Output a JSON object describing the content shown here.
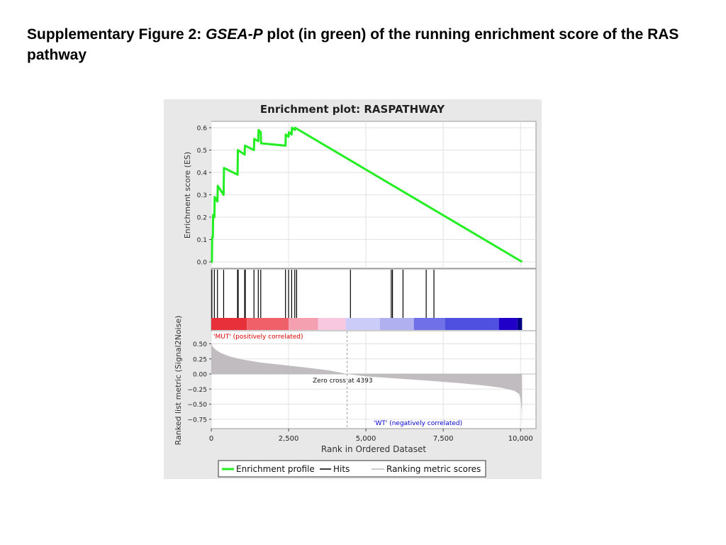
{
  "caption": {
    "prefix": "Supplementary Figure 2: ",
    "italic": "GSEA-P",
    "suffix": " plot (in green) of the running enrichment score of the RAS pathway"
  },
  "colors": {
    "panel_bg": "#e8e8e8",
    "es_line": "#22ee22",
    "hits": "#000000",
    "metric_fill": "#c0bcc0",
    "mut_label": "#dd0000",
    "wt_label": "#0000cc"
  },
  "chart_data": {
    "type": "line",
    "title": "Enrichment plot: RASPATHWAY",
    "xlabel": "Rank in Ordered Dataset",
    "xlim": [
      0,
      10500
    ],
    "x_ticks": [
      "0",
      "2,500",
      "5,000",
      "7,500",
      "10,000"
    ],
    "x_tick_values": [
      0,
      2500,
      5000,
      7500,
      10000
    ],
    "es_panel": {
      "ylabel": "Enrichment score (ES)",
      "ylim": [
        0,
        0.62
      ],
      "y_ticks": [
        "0.0",
        "0.1",
        "0.2",
        "0.3",
        "0.4",
        "0.5",
        "0.6"
      ],
      "y_tick_values": [
        0,
        0.1,
        0.2,
        0.3,
        0.4,
        0.5,
        0.6
      ],
      "series": [
        {
          "name": "Enrichment profile",
          "x": [
            0,
            20,
            30,
            50,
            60,
            100,
            110,
            200,
            210,
            400,
            410,
            850,
            860,
            1080,
            1090,
            1380,
            1390,
            1520,
            1530,
            1600,
            1610,
            2400,
            2410,
            2500,
            2510,
            2600,
            2610,
            2700,
            2710,
            10050
          ],
          "y": [
            0.0,
            0.0,
            0.11,
            0.11,
            0.21,
            0.2,
            0.29,
            0.27,
            0.34,
            0.3,
            0.42,
            0.39,
            0.5,
            0.48,
            0.52,
            0.5,
            0.55,
            0.54,
            0.59,
            0.58,
            0.53,
            0.52,
            0.57,
            0.56,
            0.58,
            0.57,
            0.6,
            0.59,
            0.6,
            0.0
          ]
        }
      ]
    },
    "hits_panel": {
      "name": "Hits",
      "positions": [
        20,
        100,
        200,
        400,
        850,
        870,
        1080,
        1100,
        1380,
        1520,
        1600,
        2400,
        2500,
        2600,
        2700,
        2760,
        4500,
        5820,
        5860,
        6200,
        6950,
        7200
      ]
    },
    "rank_bar": {
      "segments": [
        {
          "end": 1150,
          "color": "#e8303a"
        },
        {
          "end": 2500,
          "color": "#f06068"
        },
        {
          "end": 3450,
          "color": "#f4a0b0"
        },
        {
          "end": 4350,
          "color": "#f8c8e0"
        },
        {
          "end": 5450,
          "color": "#ccccf8"
        },
        {
          "end": 6550,
          "color": "#b0b0f0"
        },
        {
          "end": 7550,
          "color": "#7070e8"
        },
        {
          "end": 9300,
          "color": "#5050e0"
        },
        {
          "end": 9900,
          "color": "#2000c8"
        },
        {
          "end": 10050,
          "color": "#000080"
        }
      ]
    },
    "metric_panel": {
      "ylabel": "Ranked list metric (Signal2Noise)",
      "ylim": [
        -0.9,
        0.6
      ],
      "y_ticks": [
        "0.50",
        "0.25",
        "0.00",
        "−0.25",
        "−0.50",
        "−0.75"
      ],
      "y_tick_values": [
        0.5,
        0.25,
        0,
        -0.25,
        -0.5,
        -0.75
      ],
      "series_name": "Ranking metric scores",
      "x": [
        0,
        50,
        150,
        300,
        600,
        1000,
        1600,
        2200,
        3000,
        3800,
        4393,
        5000,
        6000,
        7000,
        8000,
        8800,
        9400,
        9800,
        9950,
        10000,
        10040,
        10050
      ],
      "y": [
        0.5,
        0.45,
        0.4,
        0.35,
        0.29,
        0.24,
        0.19,
        0.155,
        0.11,
        0.06,
        0.0,
        -0.04,
        -0.075,
        -0.11,
        -0.15,
        -0.19,
        -0.23,
        -0.28,
        -0.33,
        -0.4,
        -0.6,
        -0.85
      ],
      "zero_cross": 4393,
      "annotations": {
        "mut": "'MUT' (positively correlated)",
        "wt": "'WT' (negatively correlated)",
        "zero": "Zero cross at 4393"
      }
    },
    "legend": {
      "placement": "bottom",
      "items": [
        "Enrichment profile",
        "Hits",
        "Ranking metric scores"
      ]
    }
  }
}
